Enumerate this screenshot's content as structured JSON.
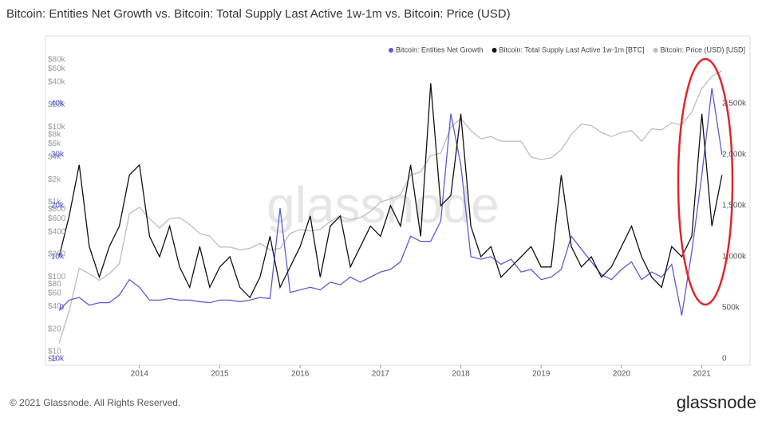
{
  "chart_data": {
    "type": "line",
    "title": "Bitcoin: Entities Net Growth vs. Bitcoin: Total Supply Last Active 1w-1m vs. Bitcoin: Price (USD)",
    "watermark": "glassnode",
    "footer": "© 2021 Glassnode. All Rights Reserved.",
    "logo": "glassnode",
    "x": [
      2013,
      2013.125,
      2013.25,
      2013.375,
      2013.5,
      2013.625,
      2013.75,
      2013.875,
      2014,
      2014.125,
      2014.25,
      2014.375,
      2014.5,
      2014.625,
      2014.75,
      2014.875,
      2015,
      2015.125,
      2015.25,
      2015.375,
      2015.5,
      2015.625,
      2015.75,
      2015.875,
      2016,
      2016.125,
      2016.25,
      2016.375,
      2016.5,
      2016.625,
      2016.75,
      2016.875,
      2017,
      2017.125,
      2017.25,
      2017.375,
      2017.5,
      2017.625,
      2017.75,
      2017.875,
      2018,
      2018.125,
      2018.25,
      2018.375,
      2018.5,
      2018.625,
      2018.75,
      2018.875,
      2019,
      2019.125,
      2019.25,
      2019.375,
      2019.5,
      2019.625,
      2019.75,
      2019.875,
      2020,
      2020.125,
      2020.25,
      2020.375,
      2020.5,
      2020.625,
      2020.75,
      2020.875,
      2021,
      2021.125,
      2021.25
    ],
    "xlim": [
      2012.83,
      2021.6
    ],
    "xticks": [
      2014,
      2015,
      2016,
      2017,
      2018,
      2019,
      2020,
      2021
    ],
    "log": true,
    "ylim": [
      6.6,
      115000
    ],
    "yticks": [
      {
        "value": 8,
        "label": "$8"
      },
      {
        "value": 10,
        "label": "$10"
      },
      {
        "value": 20,
        "label": "$20"
      },
      {
        "value": 40,
        "label": "$40"
      },
      {
        "value": 60,
        "label": "$60"
      },
      {
        "value": 80,
        "label": "$80"
      },
      {
        "value": 100,
        "label": "$100"
      },
      {
        "value": 200,
        "label": "$200"
      },
      {
        "value": 400,
        "label": "$400"
      },
      {
        "value": 600,
        "label": "$600"
      },
      {
        "value": 800,
        "label": "$800"
      },
      {
        "value": 1000,
        "label": "$1k"
      },
      {
        "value": 2000,
        "label": "$2k"
      },
      {
        "value": 4000,
        "label": "$4k"
      },
      {
        "value": 6000,
        "label": "$6k"
      },
      {
        "value": 8000,
        "label": "$8k"
      },
      {
        "value": 10000,
        "label": "$10k"
      },
      {
        "value": 20000,
        "label": "$20k"
      },
      {
        "value": 40000,
        "label": "$40k"
      },
      {
        "value": 60000,
        "label": "$60k"
      },
      {
        "value": 80000,
        "label": "$80k"
      }
    ],
    "y2lim": [
      -11250,
      50900
    ],
    "y2ticks": [
      {
        "value": -10000,
        "label": "-10k"
      },
      0,
      {
        "value": 10000,
        "label": "10k"
      },
      {
        "value": 20000,
        "label": "20k"
      },
      {
        "value": 30000,
        "label": "30k"
      },
      {
        "value": 40000,
        "label": "40k"
      }
    ],
    "y3lim": [
      -62500,
      3047000
    ],
    "y3ticks": [
      0,
      {
        "value": 500000,
        "label": "500k"
      },
      {
        "value": 1000000,
        "label": "1,000k"
      },
      {
        "value": 1500000,
        "label": "1,500k"
      },
      {
        "value": 2000000,
        "label": "2,000k"
      },
      {
        "value": 2500000,
        "label": "2,500k"
      }
    ],
    "series": [
      {
        "name": "Bitcoin: Entities Net Growth",
        "color": "#5b5bd6",
        "axis": "y2",
        "values": [
          -500,
          1500,
          2000,
          500,
          1000,
          1000,
          2500,
          5500,
          4000,
          1500,
          1500,
          1800,
          1500,
          1500,
          1200,
          1000,
          1500,
          1500,
          1200,
          1500,
          2000,
          1800,
          19500,
          3000,
          3500,
          4000,
          3500,
          5000,
          4500,
          6000,
          5000,
          6000,
          7000,
          7500,
          9000,
          14000,
          13000,
          13000,
          17000,
          38000,
          28000,
          10000,
          9500,
          10000,
          8500,
          9500,
          7000,
          7500,
          5500,
          6000,
          7500,
          14000,
          11500,
          9000,
          6500,
          5500,
          7500,
          9000,
          5500,
          7000,
          6000,
          8500,
          -1500,
          11000,
          26000,
          43000,
          30000
        ]
      },
      {
        "name": "Bitcoin: Total Supply Last Active 1w-1m [BTC]",
        "color": "#111111",
        "axis": "y3",
        "values": [
          1000000,
          1400000,
          1900000,
          1100000,
          800000,
          1100000,
          1300000,
          1800000,
          1900000,
          1200000,
          1000000,
          1300000,
          900000,
          700000,
          1100000,
          700000,
          900000,
          1000000,
          700000,
          600000,
          800000,
          1200000,
          700000,
          900000,
          1100000,
          1400000,
          800000,
          1300000,
          1400000,
          900000,
          1100000,
          1300000,
          1200000,
          1500000,
          1300000,
          1900000,
          1200000,
          2700000,
          1500000,
          1600000,
          2400000,
          1300000,
          1000000,
          1100000,
          800000,
          900000,
          1000000,
          1100000,
          900000,
          900000,
          1800000,
          1100000,
          900000,
          1000000,
          800000,
          900000,
          1100000,
          1300000,
          1000000,
          800000,
          700000,
          1100000,
          1000000,
          1200000,
          2400000,
          1300000,
          1800000
        ]
      },
      {
        "name": "Bitcoin: Price (USD) [USD]",
        "color": "#bdbdbd",
        "axis": "y",
        "values": [
          13,
          35,
          130,
          110,
          90,
          110,
          150,
          700,
          850,
          600,
          450,
          600,
          620,
          500,
          380,
          350,
          250,
          250,
          230,
          240,
          280,
          230,
          240,
          380,
          430,
          410,
          430,
          550,
          650,
          580,
          620,
          750,
          1000,
          1100,
          1250,
          2300,
          2500,
          4200,
          4500,
          10000,
          13000,
          9000,
          7000,
          7500,
          6500,
          6500,
          6500,
          4000,
          3700,
          3900,
          5000,
          8000,
          11000,
          10500,
          8500,
          7500,
          8500,
          9000,
          6500,
          9500,
          9200,
          11500,
          10700,
          16000,
          33000,
          48000,
          57000
        ]
      }
    ]
  }
}
